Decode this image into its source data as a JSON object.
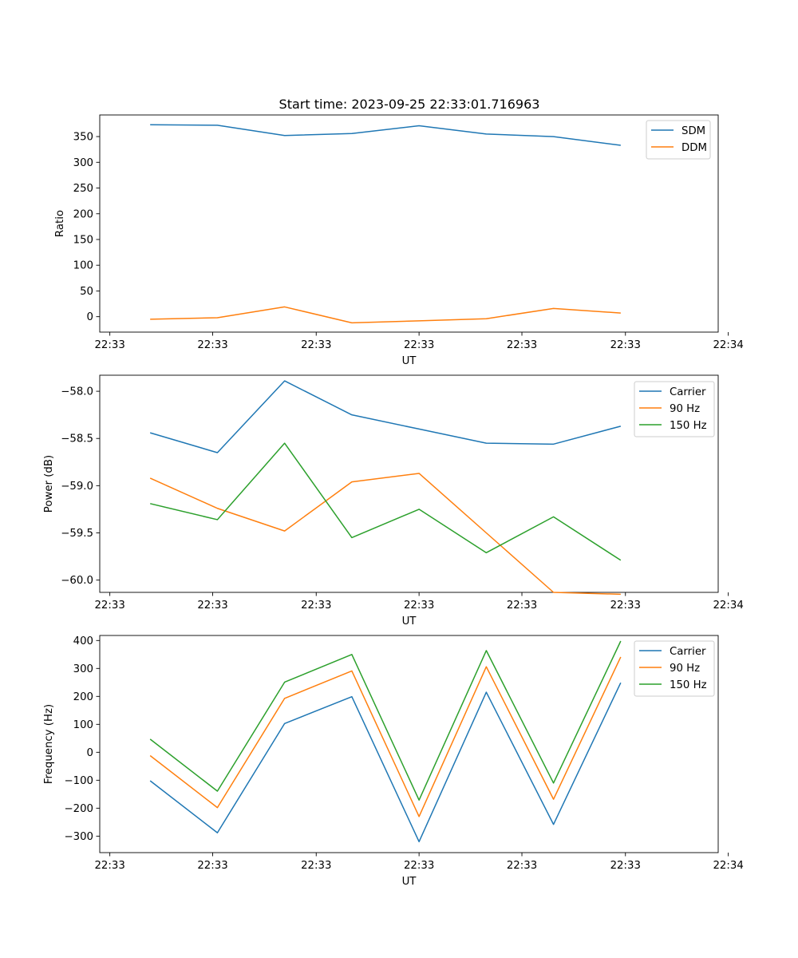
{
  "title": "Start time: 2023-09-25 22:33:01.716963",
  "colors": {
    "blue": "#1f77b4",
    "orange": "#ff7f0e",
    "green": "#2ca02c"
  },
  "chart_data": [
    {
      "type": "line",
      "title": "Start time: 2023-09-25 22:33:01.716963",
      "xlabel": "UT",
      "ylabel": "Ratio",
      "x": [
        1,
        2,
        3,
        4,
        5,
        6,
        7,
        8
      ],
      "xlim": [
        0.25,
        9.45
      ],
      "xticks": [
        0.4,
        1.93,
        3.47,
        5.0,
        6.53,
        8.07,
        9.6
      ],
      "xtick_labels": [
        "22:33",
        "22:33",
        "22:33",
        "22:33",
        "22:33",
        "22:33",
        "22:34"
      ],
      "ylim": [
        -30,
        392
      ],
      "yticks": [
        0,
        50,
        100,
        150,
        200,
        250,
        300,
        350
      ],
      "ytick_labels": [
        "0",
        "50",
        "100",
        "150",
        "200",
        "250",
        "300",
        "350"
      ],
      "legend": "top-right",
      "series": [
        {
          "name": "SDM",
          "color": "#1f77b4",
          "values": [
            373,
            372,
            352,
            356,
            371,
            355,
            350,
            333
          ]
        },
        {
          "name": "DDM",
          "color": "#ff7f0e",
          "values": [
            -5,
            -2,
            19,
            -12,
            -8,
            -4,
            16,
            7
          ]
        }
      ]
    },
    {
      "type": "line",
      "xlabel": "UT",
      "ylabel": "Power (dB)",
      "x": [
        1,
        2,
        3,
        4,
        5,
        6,
        7,
        8
      ],
      "xlim": [
        0.25,
        9.45
      ],
      "xticks": [
        0.4,
        1.93,
        3.47,
        5.0,
        6.53,
        8.07,
        9.6
      ],
      "xtick_labels": [
        "22:33",
        "22:33",
        "22:33",
        "22:33",
        "22:33",
        "22:33",
        "22:34"
      ],
      "ylim": [
        -60.13,
        -57.83
      ],
      "yticks": [
        -60.0,
        -59.5,
        -59.0,
        -58.5,
        -58.0
      ],
      "ytick_labels": [
        "−60.0",
        "−59.5",
        "−59.0",
        "−58.5",
        "−58.0"
      ],
      "legend": "top-right",
      "series": [
        {
          "name": "Carrier",
          "color": "#1f77b4",
          "values": [
            -58.44,
            -58.65,
            -57.89,
            -58.25,
            -58.4,
            -58.55,
            -58.56,
            -58.37
          ]
        },
        {
          "name": "90 Hz",
          "color": "#ff7f0e",
          "values": [
            -58.92,
            -59.24,
            -59.48,
            -58.96,
            -58.87,
            -59.5,
            -60.13,
            -60.15
          ]
        },
        {
          "name": "150 Hz",
          "color": "#2ca02c",
          "values": [
            -59.19,
            -59.36,
            -58.55,
            -59.55,
            -59.25,
            -59.71,
            -59.33,
            -59.79
          ]
        }
      ]
    },
    {
      "type": "line",
      "xlabel": "UT",
      "ylabel": "Frequency (Hz)",
      "x": [
        1,
        2,
        3,
        4,
        5,
        6,
        7,
        8
      ],
      "xlim": [
        0.25,
        9.45
      ],
      "xticks": [
        0.4,
        1.93,
        3.47,
        5.0,
        6.53,
        8.07,
        9.6
      ],
      "xtick_labels": [
        "22:33",
        "22:33",
        "22:33",
        "22:33",
        "22:33",
        "22:33",
        "22:34"
      ],
      "ylim": [
        -359,
        418
      ],
      "yticks": [
        -300,
        -200,
        -100,
        0,
        100,
        200,
        300,
        400
      ],
      "ytick_labels": [
        "−300",
        "−200",
        "−100",
        "0",
        "100",
        "200",
        "300",
        "400"
      ],
      "legend": "top-right",
      "series": [
        {
          "name": "Carrier",
          "color": "#1f77b4",
          "values": [
            -102,
            -288,
            103,
            199,
            -320,
            215,
            -258,
            249
          ]
        },
        {
          "name": "90 Hz",
          "color": "#ff7f0e",
          "values": [
            -12,
            -198,
            193,
            291,
            -230,
            306,
            -168,
            341
          ]
        },
        {
          "name": "150 Hz",
          "color": "#2ca02c",
          "values": [
            47,
            -139,
            251,
            350,
            -171,
            364,
            -110,
            398
          ]
        }
      ]
    }
  ]
}
